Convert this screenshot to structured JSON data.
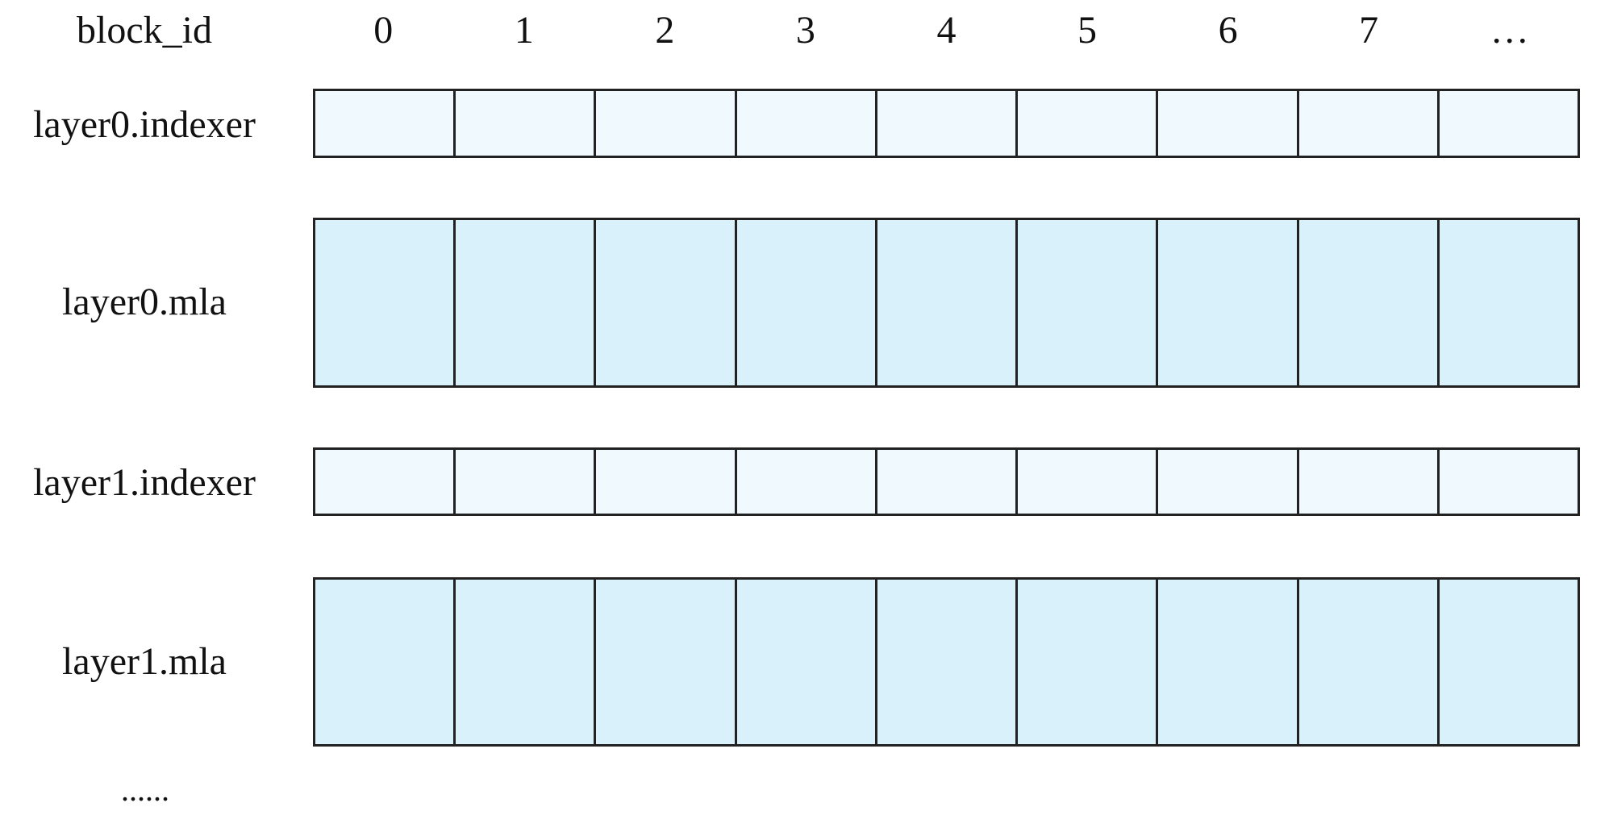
{
  "header": {
    "label": "block_id",
    "columns": [
      "0",
      "1",
      "2",
      "3",
      "4",
      "5",
      "6",
      "7",
      "…"
    ]
  },
  "rows": [
    {
      "label": "layer0.indexer",
      "kind": "indexer"
    },
    {
      "label": "layer0.mla",
      "kind": "mla"
    },
    {
      "label": "layer1.indexer",
      "kind": "indexer"
    },
    {
      "label": "layer1.mla",
      "kind": "mla"
    }
  ],
  "continuation": "......",
  "colors": {
    "indexer": "#f0f9fd",
    "mla": "#d9f1fb",
    "border": "#222222"
  }
}
